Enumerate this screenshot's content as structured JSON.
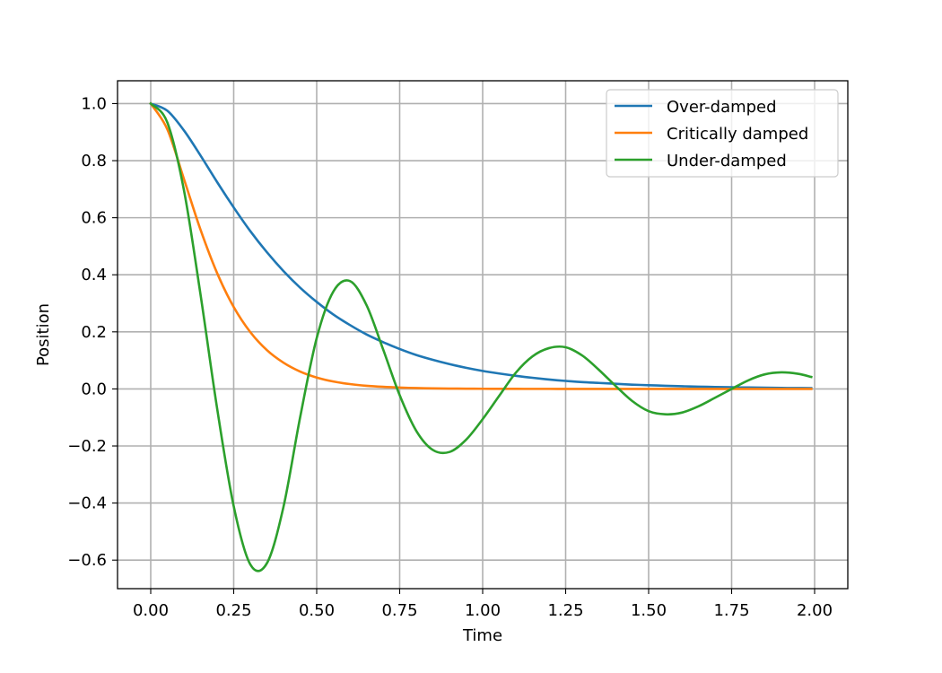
{
  "chart_data": {
    "type": "line",
    "title": "",
    "xlabel": "Time",
    "ylabel": "Position",
    "xlim": [
      -0.1,
      2.1
    ],
    "ylim": [
      -0.7,
      1.08
    ],
    "xticks": [
      0.0,
      0.25,
      0.5,
      0.75,
      1.0,
      1.25,
      1.5,
      1.75,
      2.0
    ],
    "xtick_labels": [
      "0.00",
      "0.25",
      "0.50",
      "0.75",
      "1.00",
      "1.25",
      "1.50",
      "1.75",
      "2.00"
    ],
    "yticks": [
      -0.6,
      -0.4,
      -0.2,
      0.0,
      0.2,
      0.4,
      0.6,
      0.8,
      1.0
    ],
    "ytick_labels": [
      "−0.6",
      "−0.4",
      "−0.2",
      "0.0",
      "0.2",
      "0.4",
      "0.6",
      "0.8",
      "1.0"
    ],
    "grid": true,
    "legend_position": "top-right",
    "x": [
      0.0,
      0.05,
      0.1,
      0.15,
      0.2,
      0.25,
      0.3,
      0.35,
      0.4,
      0.45,
      0.5,
      0.55,
      0.6,
      0.65,
      0.7,
      0.75,
      0.8,
      0.85,
      0.9,
      0.95,
      1.0,
      1.05,
      1.1,
      1.15,
      1.2,
      1.25,
      1.3,
      1.35,
      1.4,
      1.45,
      1.5,
      1.55,
      1.6,
      1.65,
      1.7,
      1.75,
      1.8,
      1.85,
      1.9,
      1.95,
      1.99
    ],
    "series": [
      {
        "name": "Over-damped",
        "color": "#1f77b4",
        "values": [
          1.0,
          0.975,
          0.906,
          0.818,
          0.725,
          0.636,
          0.553,
          0.479,
          0.413,
          0.355,
          0.305,
          0.261,
          0.224,
          0.191,
          0.164,
          0.14,
          0.119,
          0.102,
          0.087,
          0.074,
          0.063,
          0.054,
          0.046,
          0.039,
          0.033,
          0.028,
          0.024,
          0.021,
          0.018,
          0.015,
          0.013,
          0.011,
          0.0093,
          0.0079,
          0.0067,
          0.0057,
          0.0049,
          0.0042,
          0.0035,
          0.003,
          0.0027
        ]
      },
      {
        "name": "Critically damped",
        "color": "#ff7f0e",
        "values": [
          1.0,
          0.91,
          0.736,
          0.558,
          0.406,
          0.287,
          0.199,
          0.136,
          0.092,
          0.061,
          0.04,
          0.026,
          0.017,
          0.011,
          0.0073,
          0.0047,
          0.003,
          0.0019,
          0.0012,
          0.0008,
          0.0005,
          0.0003,
          0.0002,
          0.0001,
          0.0001,
          0.0,
          0.0,
          0.0,
          0.0,
          0.0,
          0.0,
          0.0,
          0.0,
          0.0,
          0.0,
          0.0,
          0.0,
          0.0,
          0.0,
          0.0,
          0.0
        ]
      },
      {
        "name": "Under-damped",
        "color": "#2ca02c",
        "values": [
          1.0,
          0.934,
          0.697,
          0.331,
          -0.068,
          -0.411,
          -0.615,
          -0.611,
          -0.413,
          -0.1,
          0.178,
          0.341,
          0.378,
          0.294,
          0.139,
          -0.022,
          -0.147,
          -0.214,
          -0.221,
          -0.178,
          -0.106,
          -0.024,
          0.057,
          0.114,
          0.143,
          0.146,
          0.117,
          0.067,
          0.011,
          -0.042,
          -0.078,
          -0.089,
          -0.083,
          -0.061,
          -0.031,
          0.0,
          0.03,
          0.051,
          0.058,
          0.053,
          0.042
        ]
      }
    ]
  }
}
